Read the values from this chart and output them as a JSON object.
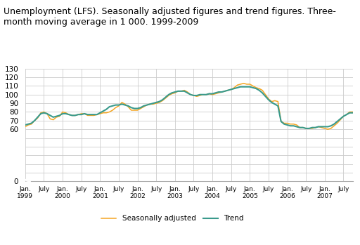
{
  "title_line1": "Unemployment (LFS). Seasonally adjusted figures and trend figures. Three-",
  "title_line2": "month moving average in 1 000. 1999-2009",
  "title_fontsize": 9,
  "background_color": "#ffffff",
  "grid_color": "#cccccc",
  "ylim": [
    0,
    130
  ],
  "yticks": [
    0,
    10,
    20,
    30,
    40,
    50,
    60,
    70,
    80,
    90,
    100,
    110,
    120,
    130
  ],
  "ytick_labels": [
    "0",
    "",
    "",
    "",
    "",
    "",
    "60",
    "70",
    "80",
    "90",
    "100",
    "110",
    "120",
    "130"
  ],
  "seasonally_adjusted_color": "#f5a623",
  "trend_color": "#3a9a8c",
  "legend_sa": "Seasonally adjusted",
  "legend_trend": "Trend",
  "seasonally_adjusted": [
    63,
    65,
    66,
    70,
    73,
    79,
    80,
    78,
    72,
    71,
    74,
    75,
    80,
    79,
    77,
    76,
    76,
    77,
    78,
    78,
    76,
    76,
    76,
    77,
    78,
    79,
    79,
    80,
    82,
    85,
    87,
    91,
    89,
    86,
    82,
    82,
    82,
    84,
    86,
    88,
    89,
    89,
    90,
    91,
    93,
    96,
    99,
    101,
    102,
    104,
    104,
    105,
    103,
    100,
    99,
    98,
    99,
    100,
    100,
    101,
    100,
    101,
    102,
    103,
    104,
    105,
    106,
    108,
    111,
    112,
    113,
    112,
    112,
    110,
    108,
    107,
    105,
    100,
    95,
    92,
    93,
    92,
    69,
    67,
    67,
    66,
    66,
    65,
    62,
    62,
    61,
    61,
    61,
    62,
    63,
    62,
    61,
    60,
    61,
    64,
    67,
    71,
    75,
    77,
    80,
    80
  ],
  "trend": [
    65,
    66,
    67,
    70,
    74,
    78,
    79,
    78,
    76,
    74,
    75,
    76,
    78,
    78,
    77,
    76,
    76,
    77,
    77,
    78,
    77,
    77,
    77,
    77,
    79,
    81,
    83,
    86,
    87,
    88,
    88,
    89,
    88,
    87,
    85,
    84,
    84,
    85,
    87,
    88,
    89,
    90,
    91,
    92,
    94,
    97,
    100,
    102,
    103,
    104,
    104,
    104,
    102,
    100,
    99,
    99,
    100,
    100,
    100,
    101,
    101,
    102,
    103,
    103,
    104,
    105,
    106,
    107,
    108,
    109,
    109,
    109,
    109,
    108,
    107,
    105,
    102,
    98,
    94,
    91,
    89,
    87,
    69,
    66,
    65,
    64,
    64,
    63,
    62,
    62,
    61,
    61,
    62,
    62,
    63,
    63,
    63,
    63,
    64,
    66,
    69,
    72,
    75,
    77,
    79,
    79
  ]
}
